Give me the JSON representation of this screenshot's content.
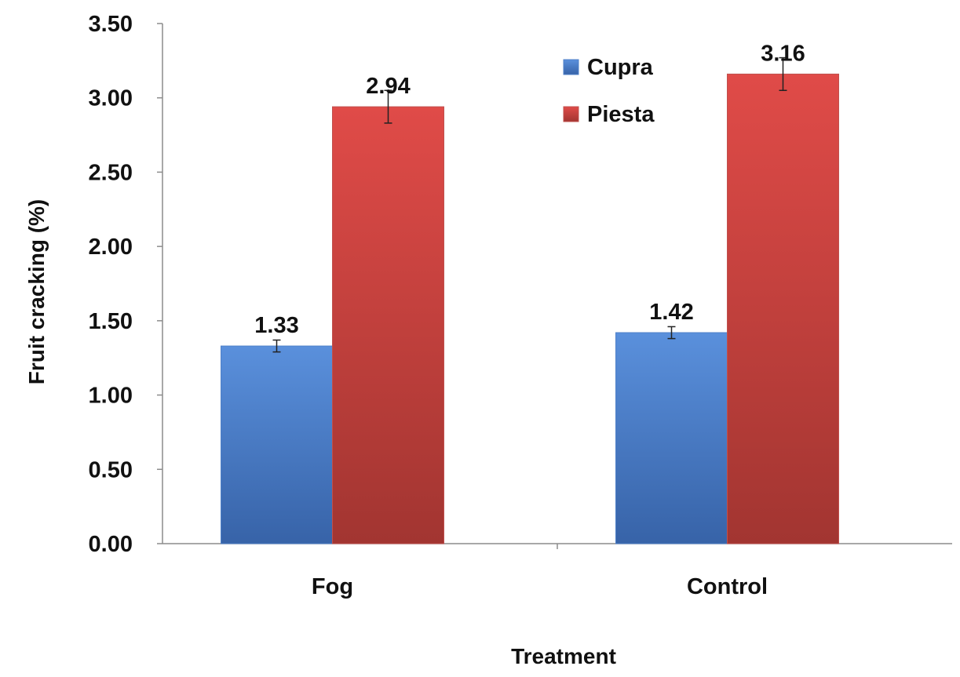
{
  "chart_data": {
    "type": "bar",
    "categories": [
      "Fog",
      "Control"
    ],
    "series": [
      {
        "name": "Cupra",
        "values": [
          1.33,
          1.42
        ],
        "errors": [
          0.04,
          0.04
        ],
        "color": "#4F81C9"
      },
      {
        "name": "Piesta",
        "values": [
          2.94,
          3.16
        ],
        "errors": [
          0.11,
          0.11
        ],
        "color": "#C0504D"
      }
    ],
    "data_labels": [
      "1.33",
      "1.42",
      "2.94",
      "3.16"
    ],
    "xlabel": "Treatment",
    "ylabel": "Fruit cracking (%)",
    "ylim": [
      0,
      3.5
    ],
    "yticks": [
      "0.00",
      "0.50",
      "1.00",
      "1.50",
      "2.00",
      "2.50",
      "3.00",
      "3.50"
    ],
    "grid": false,
    "legend_position": "top-center"
  }
}
